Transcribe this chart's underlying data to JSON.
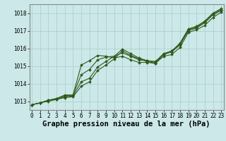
{
  "title": "Graphe pression niveau de la mer (hPa)",
  "x_labels": [
    "0",
    "1",
    "2",
    "3",
    "4",
    "5",
    "6",
    "7",
    "8",
    "9",
    "10",
    "11",
    "12",
    "13",
    "14",
    "15",
    "16",
    "17",
    "18",
    "19",
    "20",
    "21",
    "22",
    "23"
  ],
  "ylim": [
    1012.5,
    1018.5
  ],
  "xlim": [
    -0.3,
    23.3
  ],
  "yticks": [
    1013,
    1014,
    1015,
    1016,
    1017,
    1018
  ],
  "background_color": "#cce8e8",
  "grid_color": "#aacccc",
  "line_color": "#2d5a1b",
  "line1": [
    1012.8,
    1012.9,
    1013.0,
    1013.1,
    1013.2,
    1013.25,
    1013.85,
    1014.1,
    1014.75,
    1015.05,
    1015.4,
    1015.85,
    1015.6,
    1015.4,
    1015.25,
    1015.15,
    1015.55,
    1015.65,
    1016.05,
    1016.9,
    1017.05,
    1017.3,
    1017.75,
    1018.05
  ],
  "line2": [
    1012.8,
    1012.9,
    1013.05,
    1013.1,
    1013.25,
    1013.3,
    1014.1,
    1014.3,
    1014.95,
    1015.25,
    1015.55,
    1015.95,
    1015.7,
    1015.45,
    1015.3,
    1015.2,
    1015.65,
    1015.8,
    1016.2,
    1017.0,
    1017.15,
    1017.45,
    1017.9,
    1018.15
  ],
  "line3": [
    1012.8,
    1012.9,
    1013.05,
    1013.15,
    1013.3,
    1013.35,
    1014.5,
    1014.8,
    1015.35,
    1015.5,
    1015.55,
    1015.75,
    1015.55,
    1015.35,
    1015.3,
    1015.25,
    1015.7,
    1015.85,
    1016.25,
    1017.05,
    1017.2,
    1017.5,
    1017.95,
    1018.2
  ],
  "line4": [
    1012.8,
    1012.9,
    1013.05,
    1013.15,
    1013.35,
    1013.35,
    1015.05,
    1015.3,
    1015.6,
    1015.55,
    1015.45,
    1015.55,
    1015.35,
    1015.2,
    1015.2,
    1015.15,
    1015.65,
    1015.85,
    1016.3,
    1017.1,
    1017.25,
    1017.55,
    1018.0,
    1018.25
  ],
  "marker": "D",
  "marker_size": 2.0,
  "linewidth": 0.8,
  "title_fontsize": 7.5,
  "tick_fontsize": 5.5,
  "fig_width": 3.2,
  "fig_height": 2.0,
  "dpi": 100
}
